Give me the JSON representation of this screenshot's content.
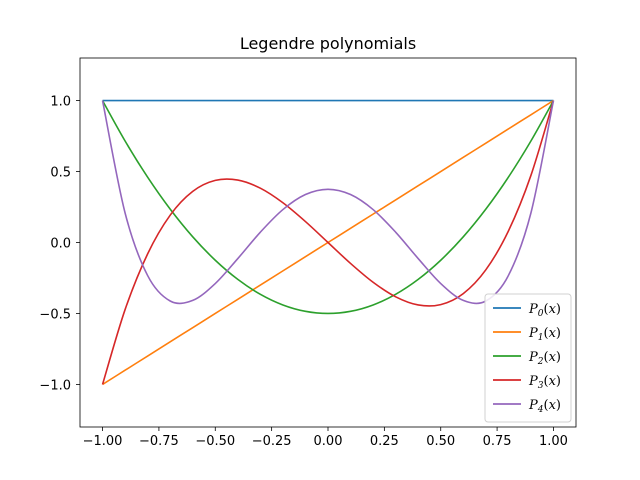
{
  "chart_data": {
    "type": "line",
    "title": "Legendre polynomials",
    "xlabel": "",
    "ylabel": "",
    "xlim": [
      -1.1,
      1.1
    ],
    "ylim": [
      -1.3,
      1.3
    ],
    "xticks": [
      -1.0,
      -0.75,
      -0.5,
      -0.25,
      0.0,
      0.25,
      0.5,
      0.75,
      1.0
    ],
    "xtick_labels": [
      "−1.00",
      "−0.75",
      "−0.50",
      "−0.25",
      "0.00",
      "0.25",
      "0.50",
      "0.75",
      "1.00"
    ],
    "yticks": [
      -1.0,
      -0.5,
      0.0,
      0.5,
      1.0
    ],
    "ytick_labels": [
      "−1.0",
      "−0.5",
      "0.0",
      "0.5",
      "1.0"
    ],
    "grid": false,
    "legend_position": "lower-right",
    "x": [
      -1.0,
      -0.9,
      -0.8,
      -0.7,
      -0.6,
      -0.5,
      -0.4,
      -0.3,
      -0.2,
      -0.1,
      0.0,
      0.1,
      0.2,
      0.3,
      0.4,
      0.5,
      0.6,
      0.7,
      0.8,
      0.9,
      1.0
    ],
    "series": [
      {
        "name": "P",
        "sub": "0",
        "color": "#1f77b4",
        "values": [
          1,
          1,
          1,
          1,
          1,
          1,
          1,
          1,
          1,
          1,
          1,
          1,
          1,
          1,
          1,
          1,
          1,
          1,
          1,
          1,
          1
        ]
      },
      {
        "name": "P",
        "sub": "1",
        "color": "#ff7f0e",
        "values": [
          -1.0,
          -0.9,
          -0.8,
          -0.7,
          -0.6,
          -0.5,
          -0.4,
          -0.3,
          -0.2,
          -0.1,
          0.0,
          0.1,
          0.2,
          0.3,
          0.4,
          0.5,
          0.6,
          0.7,
          0.8,
          0.9,
          1.0
        ]
      },
      {
        "name": "P",
        "sub": "2",
        "color": "#2ca02c",
        "values": [
          1.0,
          0.715,
          0.46,
          0.235,
          0.04,
          -0.125,
          -0.26,
          -0.365,
          -0.44,
          -0.485,
          -0.5,
          -0.485,
          -0.44,
          -0.365,
          -0.26,
          -0.125,
          0.04,
          0.235,
          0.46,
          0.715,
          1.0
        ]
      },
      {
        "name": "P",
        "sub": "3",
        "color": "#d62728",
        "values": [
          -1.0,
          -0.4725,
          -0.08,
          0.1925,
          0.36,
          0.4375,
          0.44,
          0.3825,
          0.28,
          0.1475,
          0.0,
          -0.1475,
          -0.28,
          -0.3825,
          -0.44,
          -0.4375,
          -0.36,
          -0.1925,
          0.08,
          0.4725,
          1.0
        ]
      },
      {
        "name": "P",
        "sub": "4",
        "color": "#9467bd",
        "values": [
          1.0,
          0.2079,
          -0.233,
          -0.4121,
          -0.408,
          -0.2891,
          -0.113,
          0.0729,
          0.232,
          0.3379,
          0.375,
          0.3379,
          0.232,
          0.0729,
          -0.113,
          -0.2891,
          -0.408,
          -0.4121,
          -0.233,
          0.2079,
          1.0
        ]
      }
    ]
  }
}
